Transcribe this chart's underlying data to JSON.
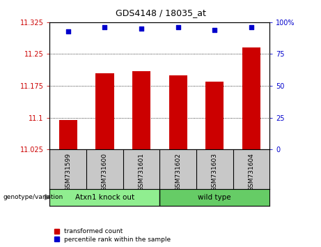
{
  "title": "GDS4148 / 18035_at",
  "samples": [
    "GSM731599",
    "GSM731600",
    "GSM731601",
    "GSM731602",
    "GSM731603",
    "GSM731604"
  ],
  "bar_values": [
    11.095,
    11.205,
    11.21,
    11.2,
    11.185,
    11.265
  ],
  "bar_baseline": 11.025,
  "percentile_values": [
    93,
    96,
    95,
    96,
    94,
    96
  ],
  "ylim_left": [
    11.025,
    11.325
  ],
  "ylim_right": [
    0,
    100
  ],
  "yticks_left": [
    11.025,
    11.1,
    11.175,
    11.25,
    11.325
  ],
  "yticks_right": [
    0,
    25,
    50,
    75,
    100
  ],
  "bar_color": "#cc0000",
  "dot_color": "#0000cc",
  "group1_label": "Atxn1 knock out",
  "group2_label": "wild type",
  "group1_indices": [
    0,
    1,
    2
  ],
  "group2_indices": [
    3,
    4,
    5
  ],
  "group1_color": "#90ee90",
  "group2_color": "#66cc66",
  "genotype_label": "genotype/variation",
  "legend_bar_label": "transformed count",
  "legend_dot_label": "percentile rank within the sample",
  "bg_color": "#ffffff",
  "plot_bg": "#ffffff",
  "tick_area_bg": "#c8c8c8"
}
